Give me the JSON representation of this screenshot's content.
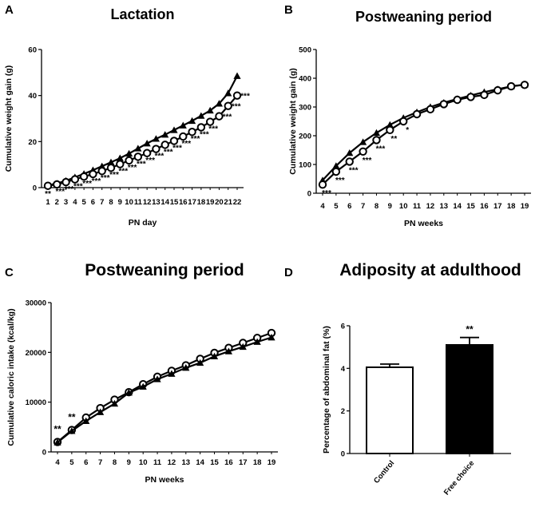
{
  "chart_data": [
    {
      "panel": "A",
      "type": "line",
      "title": "Lactation",
      "xlabel": "PN day",
      "ylabel": "Cumulative weight gain (g)",
      "categories": [
        "1",
        "2",
        "3",
        "4",
        "5",
        "6",
        "7",
        "8",
        "9",
        "10",
        "11",
        "12",
        "13",
        "14",
        "15",
        "16",
        "17",
        "18",
        "19",
        "20",
        "21",
        "22"
      ],
      "ylim": [
        0,
        60
      ],
      "yticks": [
        "0",
        "20",
        "40",
        "60"
      ],
      "series": [
        {
          "name": "triangle",
          "marker": "triangle",
          "values": [
            1.0,
            1.8,
            3.0,
            4.5,
            6.0,
            7.6,
            9.3,
            11.0,
            12.8,
            14.8,
            17.0,
            19.2,
            21.2,
            23.0,
            25.0,
            27.0,
            29.0,
            31.2,
            33.5,
            36.5,
            41.0,
            48.5
          ]
        },
        {
          "name": "circle",
          "marker": "circle",
          "values": [
            0.8,
            1.4,
            2.4,
            3.6,
            4.8,
            5.9,
            7.2,
            8.6,
            10.2,
            11.8,
            13.4,
            15.0,
            16.8,
            18.6,
            20.3,
            22.2,
            24.2,
            26.2,
            28.6,
            31.0,
            35.5,
            40.0
          ]
        }
      ],
      "annotations": [
        "**",
        "***",
        "***",
        "***",
        "***",
        "***",
        "***",
        "***",
        "***",
        "***",
        "***",
        "***",
        "***",
        "***",
        "***",
        "***",
        "***",
        "***",
        "***",
        "***",
        "***",
        "***"
      ]
    },
    {
      "panel": "B",
      "type": "line",
      "title": "Postweaning period",
      "xlabel": "PN weeks",
      "ylabel": "Cumulative weight gain (g)",
      "categories": [
        "4",
        "5",
        "6",
        "7",
        "8",
        "9",
        "10",
        "11",
        "12",
        "13",
        "14",
        "15",
        "16",
        "17",
        "18",
        "19"
      ],
      "ylim": [
        0,
        500
      ],
      "yticks": [
        "0",
        "100",
        "200",
        "300",
        "400",
        "500"
      ],
      "series": [
        {
          "name": "triangle",
          "marker": "triangle",
          "values": [
            45,
            95,
            140,
            178,
            210,
            238,
            262,
            282,
            300,
            315,
            328,
            340,
            352,
            362,
            372,
            378
          ]
        },
        {
          "name": "circle",
          "marker": "circle",
          "values": [
            30,
            75,
            110,
            145,
            185,
            220,
            250,
            275,
            292,
            310,
            325,
            335,
            342,
            358,
            372,
            377
          ]
        }
      ],
      "annotations": [
        "***",
        "***",
        "***",
        "***",
        "***",
        "**",
        "*"
      ]
    },
    {
      "panel": "C",
      "type": "line",
      "title": "Postweaning period",
      "xlabel": "PN weeks",
      "ylabel": "Cumulative caloric intake (kcal/kg)",
      "categories": [
        "4",
        "5",
        "6",
        "7",
        "8",
        "9",
        "10",
        "11",
        "12",
        "13",
        "14",
        "15",
        "16",
        "17",
        "18",
        "19"
      ],
      "ylim": [
        0,
        30000
      ],
      "yticks": [
        "0",
        "10000",
        "20000",
        "30000"
      ],
      "series": [
        {
          "name": "circle",
          "marker": "circle",
          "values": [
            2000,
            4400,
            6900,
            8800,
            10500,
            12000,
            13600,
            15100,
            16300,
            17400,
            18700,
            19900,
            20900,
            21900,
            22900,
            23900
          ]
        },
        {
          "name": "triangle",
          "marker": "triangle",
          "values": [
            1900,
            4200,
            6200,
            8000,
            9700,
            11900,
            13100,
            14600,
            15700,
            16900,
            17900,
            19200,
            20200,
            21100,
            22100,
            23000
          ]
        }
      ],
      "annotations": [
        "**",
        "**"
      ]
    },
    {
      "panel": "D",
      "type": "bar",
      "title": "Adiposity at adulthood",
      "ylabel": "Percentage of abdominal fat (%)",
      "categories": [
        "Control",
        "Free choice"
      ],
      "values": [
        4.05,
        5.1
      ],
      "errors": [
        0.15,
        0.35
      ],
      "ylim": [
        0,
        6
      ],
      "yticks": [
        "0",
        "2",
        "4",
        "6"
      ],
      "annotations": [
        "",
        "**"
      ]
    }
  ],
  "panel_letters": [
    "A",
    "B",
    "C",
    "D"
  ]
}
